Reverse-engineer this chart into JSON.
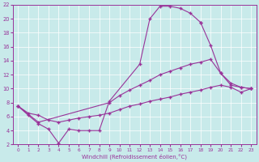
{
  "xlabel": "Windchill (Refroidissement éolien,°C)",
  "xlim": [
    -0.5,
    23.5
  ],
  "ylim": [
    2,
    22
  ],
  "xticks": [
    0,
    1,
    2,
    3,
    4,
    5,
    6,
    7,
    8,
    9,
    10,
    11,
    12,
    13,
    14,
    15,
    16,
    17,
    18,
    19,
    20,
    21,
    22,
    23
  ],
  "yticks": [
    2,
    4,
    6,
    8,
    10,
    12,
    14,
    16,
    18,
    20,
    22
  ],
  "bg_color": "#c8eaea",
  "line_color": "#993399",
  "series": [
    {
      "x": [
        0,
        1,
        2,
        3,
        4,
        5,
        6,
        7,
        8,
        9,
        12,
        13,
        14,
        15,
        16,
        17,
        18
      ],
      "y": [
        7.5,
        6.2,
        5.0,
        4.2,
        2.2,
        4.2,
        4.0,
        4.0,
        4.0,
        8.2,
        13.5,
        20.0,
        21.8,
        21.8,
        21.5,
        20.8,
        19.5
      ]
    },
    {
      "x": [
        18,
        19,
        20,
        21,
        22,
        23
      ],
      "y": [
        19.5,
        16.2,
        12.2,
        10.8,
        10.2,
        10.0
      ]
    },
    {
      "x": [
        0,
        2,
        9,
        10,
        11,
        12,
        13,
        14,
        15,
        16,
        17,
        18,
        19,
        20,
        21,
        22,
        23
      ],
      "y": [
        7.5,
        5.2,
        8.0,
        9.0,
        9.8,
        10.5,
        11.2,
        12.0,
        12.5,
        13.0,
        13.5,
        13.8,
        14.2,
        12.2,
        10.5,
        10.2,
        10.0
      ]
    },
    {
      "x": [
        0,
        1,
        2,
        3,
        4,
        5,
        6,
        7,
        8,
        9,
        10,
        11,
        12,
        13,
        14,
        15,
        16,
        17,
        18,
        19,
        20,
        21,
        22,
        23
      ],
      "y": [
        7.5,
        6.5,
        6.2,
        5.5,
        5.2,
        5.5,
        5.8,
        6.0,
        6.2,
        6.5,
        7.0,
        7.5,
        7.8,
        8.2,
        8.5,
        8.8,
        9.2,
        9.5,
        9.8,
        10.2,
        10.5,
        10.2,
        9.5,
        10.0
      ]
    }
  ]
}
